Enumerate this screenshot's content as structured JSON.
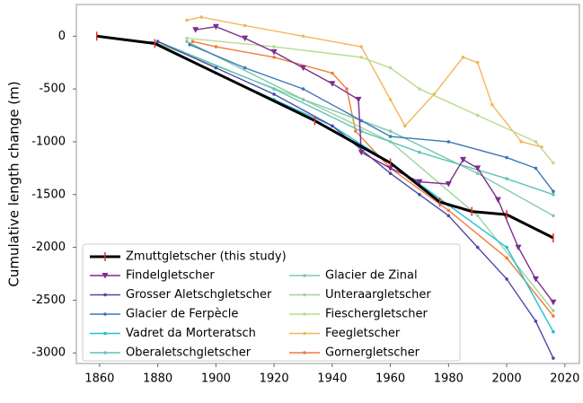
{
  "chart_data": {
    "type": "line",
    "y_label": "Cumulative length change (m)",
    "xlim": [
      1852,
      2025
    ],
    "xticks": [
      1860,
      1880,
      1900,
      1920,
      1940,
      1960,
      1980,
      2000,
      2020
    ],
    "ylim": [
      -3100,
      300
    ],
    "yticks": [
      0,
      -500,
      -1000,
      -1500,
      -2000,
      -2500,
      -3000
    ],
    "grid": false,
    "legend": "lower left",
    "series": [
      {
        "name": "Zmuttgletscher (this study)",
        "color": "#000000",
        "marker": "tick",
        "x": [
          1859,
          1879,
          1934,
          1960,
          1977,
          1988,
          2000,
          2016
        ],
        "values": [
          0,
          -70,
          -800,
          -1200,
          -1570,
          -1660,
          -1690,
          -1910
        ]
      },
      {
        "name": "Findelgletscher",
        "color": "#7b2d8e",
        "marker": "triangle",
        "x": [
          1893,
          1900,
          1910,
          1920,
          1930,
          1940,
          1949,
          1950,
          1960,
          1970,
          1980,
          1985,
          1990,
          1997,
          2004,
          2010,
          2016
        ],
        "values": [
          60,
          90,
          -20,
          -150,
          -300,
          -450,
          -600,
          -1100,
          -1250,
          -1380,
          -1400,
          -1170,
          -1250,
          -1550,
          -2000,
          -2300,
          -2520
        ]
      },
      {
        "name": "Grosser Aletschgletscher",
        "color": "#4b4ba8",
        "marker": "dot",
        "x": [
          1880,
          1900,
          1920,
          1940,
          1960,
          1970,
          1980,
          1990,
          2000,
          2010,
          2016
        ],
        "values": [
          -50,
          -300,
          -550,
          -850,
          -1300,
          -1500,
          -1700,
          -2000,
          -2300,
          -2700,
          -3050
        ]
      },
      {
        "name": "Glacier de Ferpècle",
        "color": "#3a78b8",
        "marker": "dot",
        "x": [
          1891,
          1910,
          1930,
          1950,
          1960,
          1980,
          2000,
          2010,
          2016
        ],
        "values": [
          -80,
          -300,
          -500,
          -800,
          -950,
          -1000,
          -1150,
          -1250,
          -1470
        ]
      },
      {
        "name": "Vadret da Morteratsch",
        "color": "#22bfd6",
        "marker": "dot",
        "x": [
          1878,
          1900,
          1920,
          1940,
          1960,
          1980,
          2000,
          2016
        ],
        "values": [
          -60,
          -350,
          -600,
          -850,
          -1200,
          -1600,
          -2000,
          -2800
        ]
      },
      {
        "name": "Oberaletschgletscher",
        "color": "#5fc4b8",
        "marker": "dot",
        "x": [
          1880,
          1920,
          1950,
          1970,
          2000,
          2016
        ],
        "values": [
          -50,
          -500,
          -900,
          -1100,
          -1350,
          -1500
        ]
      },
      {
        "name": "Glacier de Zinal",
        "color": "#7fc8a8",
        "marker": "dot",
        "x": [
          1890,
          1930,
          1960,
          1990,
          2016
        ],
        "values": [
          -50,
          -600,
          -900,
          -1300,
          -1700
        ]
      },
      {
        "name": "Unteraargletscher",
        "color": "#9ed4a0",
        "marker": "dot",
        "x": [
          1880,
          1930,
          1960,
          1990,
          2016
        ],
        "values": [
          -70,
          -600,
          -1000,
          -1700,
          -2600
        ]
      },
      {
        "name": "Fieschergletscher",
        "color": "#b8dc8e",
        "marker": "dot",
        "x": [
          1890,
          1920,
          1950,
          1960,
          1970,
          1990,
          2010,
          2016
        ],
        "values": [
          -20,
          -100,
          -200,
          -300,
          -500,
          -750,
          -1000,
          -1200
        ]
      },
      {
        "name": "Feegletscher",
        "color": "#f5b55a",
        "marker": "dot",
        "x": [
          1890,
          1895,
          1910,
          1930,
          1950,
          1960,
          1965,
          1975,
          1985,
          1990,
          1995,
          2005,
          2012
        ],
        "values": [
          150,
          180,
          100,
          0,
          -100,
          -600,
          -850,
          -550,
          -200,
          -250,
          -650,
          -1000,
          -1050
        ]
      },
      {
        "name": "Gornergletscher",
        "color": "#f07b3a",
        "marker": "dot",
        "x": [
          1892,
          1900,
          1920,
          1940,
          1945,
          1948,
          1960,
          1980,
          2000,
          2016
        ],
        "values": [
          -50,
          -100,
          -200,
          -350,
          -500,
          -900,
          -1250,
          -1650,
          -2100,
          -2650
        ]
      }
    ]
  }
}
